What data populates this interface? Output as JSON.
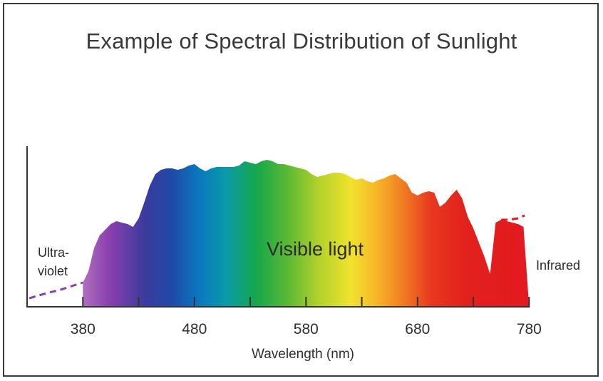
{
  "chart_data": {
    "type": "area",
    "title": "Example of Spectral Distribution of Sunlight",
    "xlabel": "Wavelength (nm)",
    "ylabel": "",
    "xlim": [
      330,
      790
    ],
    "ylim": [
      0,
      1
    ],
    "x_ticks": [
      380,
      480,
      580,
      680,
      780
    ],
    "annotations": {
      "visible": "Visible light",
      "uv_line1": "Ultra-",
      "uv_line2": "violet",
      "infrared": "Infrared"
    },
    "visible_range": [
      380,
      780
    ],
    "uv_curve": {
      "x": [
        332,
        345,
        360,
        372,
        380
      ],
      "y": [
        0.06,
        0.09,
        0.12,
        0.15,
        0.17
      ]
    },
    "spectrum": {
      "x": [
        380,
        385,
        390,
        395,
        400,
        405,
        410,
        420,
        425,
        430,
        435,
        440,
        445,
        450,
        455,
        460,
        465,
        470,
        475,
        480,
        485,
        490,
        495,
        500,
        505,
        510,
        515,
        520,
        525,
        530,
        535,
        540,
        545,
        550,
        555,
        560,
        565,
        570,
        575,
        580,
        585,
        590,
        595,
        600,
        605,
        610,
        615,
        620,
        625,
        630,
        635,
        640,
        645,
        650,
        655,
        660,
        665,
        670,
        675,
        680,
        685,
        690,
        695,
        700,
        705,
        710,
        715,
        720,
        725,
        730,
        735,
        740,
        745,
        750,
        755,
        760,
        765,
        770,
        775,
        780
      ],
      "y": [
        0.17,
        0.25,
        0.41,
        0.5,
        0.54,
        0.58,
        0.6,
        0.58,
        0.56,
        0.62,
        0.73,
        0.85,
        0.93,
        0.96,
        0.97,
        0.97,
        0.96,
        0.97,
        0.99,
        1.0,
        0.97,
        0.95,
        0.97,
        0.98,
        0.98,
        0.98,
        0.98,
        0.99,
        1.02,
        1.01,
        1.0,
        1.02,
        1.03,
        1.02,
        1.0,
        1.0,
        0.99,
        0.98,
        0.97,
        0.96,
        0.93,
        0.91,
        0.92,
        0.93,
        0.94,
        0.94,
        0.93,
        0.91,
        0.89,
        0.9,
        0.88,
        0.87,
        0.89,
        0.9,
        0.92,
        0.93,
        0.9,
        0.87,
        0.8,
        0.78,
        0.8,
        0.81,
        0.8,
        0.7,
        0.73,
        0.78,
        0.82,
        0.76,
        0.63,
        0.55,
        0.45,
        0.35,
        0.23,
        0.59,
        0.61,
        0.6,
        0.59,
        0.58,
        0.56,
        0.0
      ],
      "colors": [
        {
          "offset": 0.0,
          "color": "#b06fbf"
        },
        {
          "offset": 0.06,
          "color": "#8a3fae"
        },
        {
          "offset": 0.14,
          "color": "#3a3b9c"
        },
        {
          "offset": 0.2,
          "color": "#1e4aa8"
        },
        {
          "offset": 0.26,
          "color": "#0a78c0"
        },
        {
          "offset": 0.32,
          "color": "#0a9aa8"
        },
        {
          "offset": 0.39,
          "color": "#16a84a"
        },
        {
          "offset": 0.46,
          "color": "#5cb935"
        },
        {
          "offset": 0.53,
          "color": "#b3d22a"
        },
        {
          "offset": 0.6,
          "color": "#f0e32e"
        },
        {
          "offset": 0.66,
          "color": "#f6b429"
        },
        {
          "offset": 0.72,
          "color": "#f07a22"
        },
        {
          "offset": 0.78,
          "color": "#e8381f"
        },
        {
          "offset": 0.86,
          "color": "#e2211d"
        },
        {
          "offset": 1.0,
          "color": "#e3191f"
        }
      ]
    },
    "ir_curve": {
      "x": [
        755,
        762,
        770,
        776
      ],
      "y": [
        0.61,
        0.61,
        0.62,
        0.64
      ]
    },
    "colors": {
      "axis": "#333333",
      "uv_dash": "#8a3fae",
      "ir_dash": "#e3191f"
    }
  }
}
